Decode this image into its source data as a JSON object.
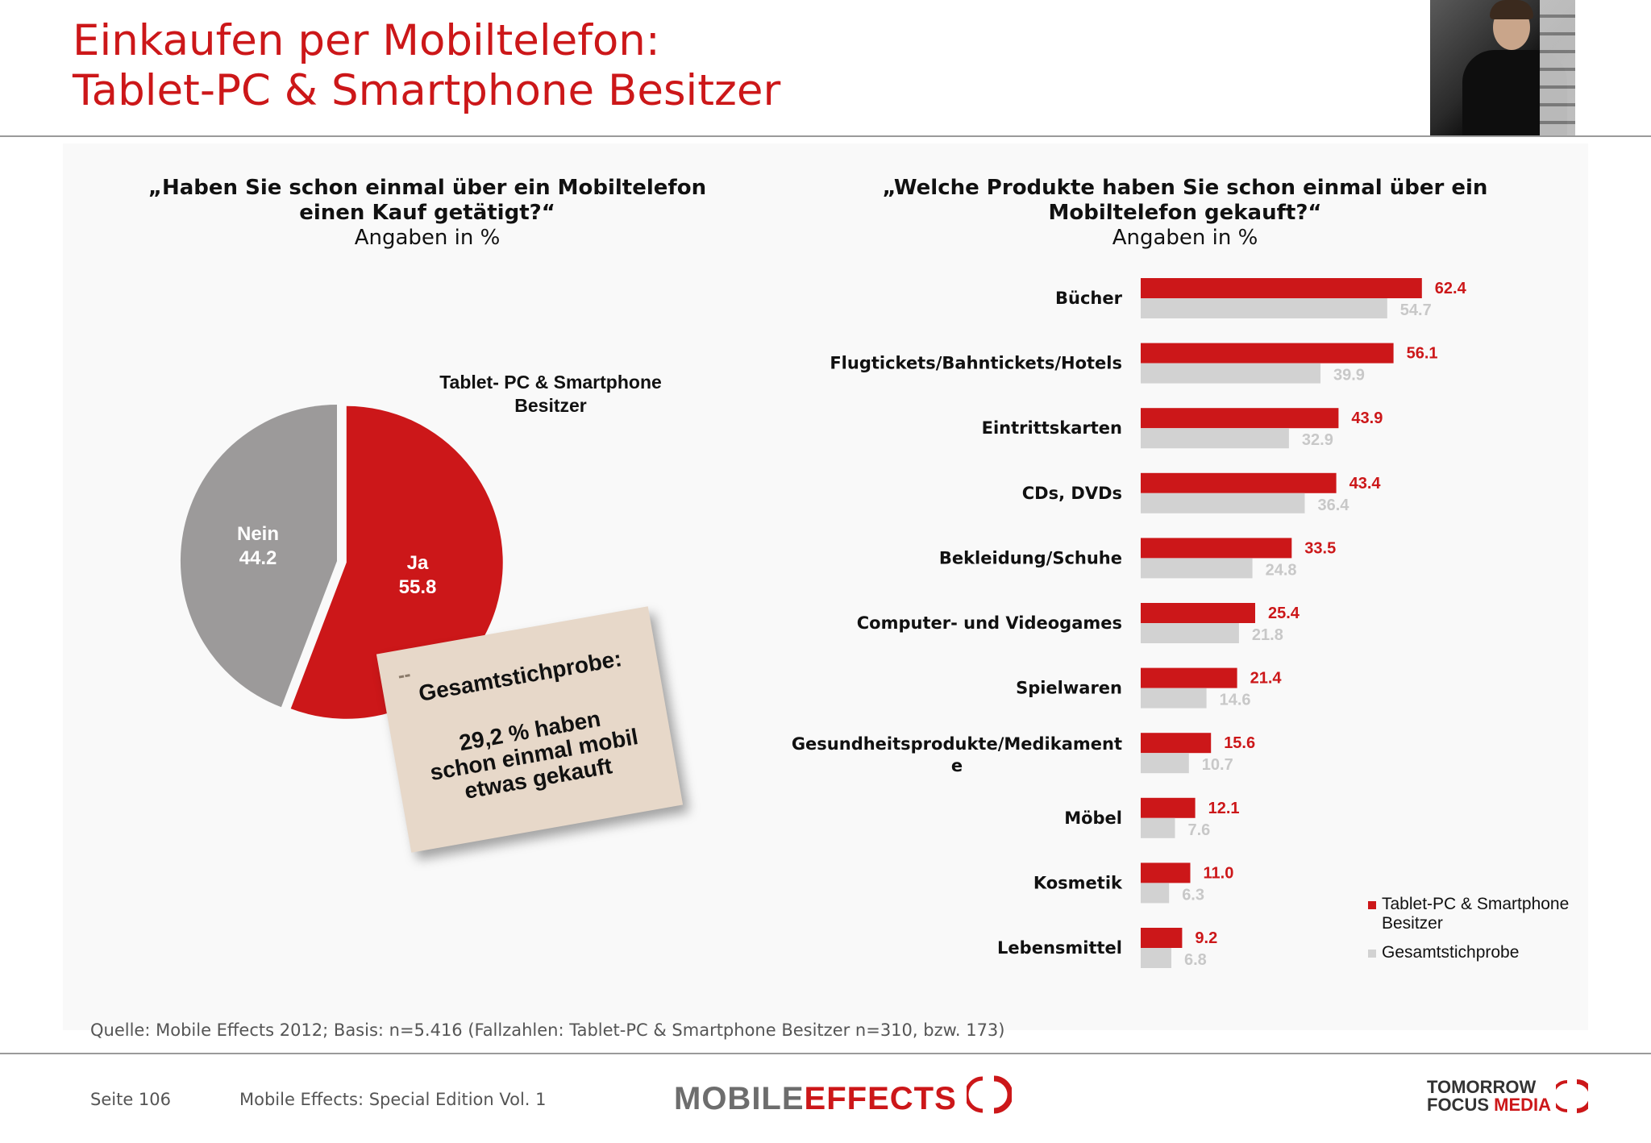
{
  "header": {
    "title_line1": "Einkaufen per Mobiltelefon:",
    "title_line2": "Tablet-PC & Smartphone Besitzer"
  },
  "left_panel": {
    "question": "„Haben Sie schon einmal über ein Mobiltelefon einen Kauf getätigt?“",
    "unit": "Angaben in %",
    "series_title": "Tablet- PC & Smartphone Besitzer",
    "note": {
      "heading": "Gesamtstichprobe:",
      "line1": "29,2 % haben",
      "line2": "schon einmal mobil",
      "line3": "etwas gekauft"
    }
  },
  "right_panel": {
    "question": "„Welche Produkte haben Sie schon einmal über ein Mobiltelefon gekauft?“",
    "unit": "Angaben in %"
  },
  "colors": {
    "accent_red": "#cc1719",
    "grey": "#9c9a9a",
    "light_grey": "#d2d2d2",
    "bar_label_grey": "#c8c8c8"
  },
  "chart_data": [
    {
      "type": "pie",
      "title": "Tablet- PC & Smartphone Besitzer",
      "slices": [
        {
          "label": "Ja",
          "value": 55.8,
          "color": "#cc1719"
        },
        {
          "label": "Nein",
          "value": 44.2,
          "color": "#9c9a9a"
        }
      ]
    },
    {
      "type": "bar",
      "orientation": "horizontal",
      "categories": [
        "Bücher",
        "Flugtickets/Bahntickets/Hotels",
        "Eintrittskarten",
        "CDs, DVDs",
        "Bekleidung/Schuhe",
        "Computer- und Videogames",
        "Spielwaren",
        "Gesundheitsprodukte/Medikament e",
        "Möbel",
        "Kosmetik",
        "Lebensmittel"
      ],
      "series": [
        {
          "name": "Tablet-PC & Smartphone Besitzer",
          "color": "#cc1719",
          "values": [
            62.4,
            56.1,
            43.9,
            43.4,
            33.5,
            25.4,
            21.4,
            15.6,
            12.1,
            11.0,
            9.2
          ]
        },
        {
          "name": "Gesamtstichprobe",
          "color": "#d2d2d2",
          "values": [
            54.7,
            39.9,
            32.9,
            36.4,
            24.8,
            21.8,
            14.6,
            10.7,
            7.6,
            6.3,
            6.8
          ]
        }
      ],
      "legend_position": "bottom-right"
    }
  ],
  "legend": {
    "items": [
      {
        "label": "Tablet-PC & Smartphone Besitzer",
        "color": "#cc1719"
      },
      {
        "label": "Gesamtstichprobe",
        "color": "#d2d2d2"
      }
    ]
  },
  "footer": {
    "source": "Quelle: Mobile Effects 2012; Basis: n=5.416 (Fallzahlen: Tablet-PC & Smartphone Besitzer n=310, bzw. 173)",
    "page": "Seite 106",
    "publication": "Mobile Effects: Special Edition Vol. 1",
    "logo_left_part1": "MOBILE",
    "logo_left_part2": "EFFECTS",
    "logo_right_line1": "TOMORROW",
    "logo_right_line2a": "FOCUS",
    "logo_right_line2b": "MEDIA"
  }
}
